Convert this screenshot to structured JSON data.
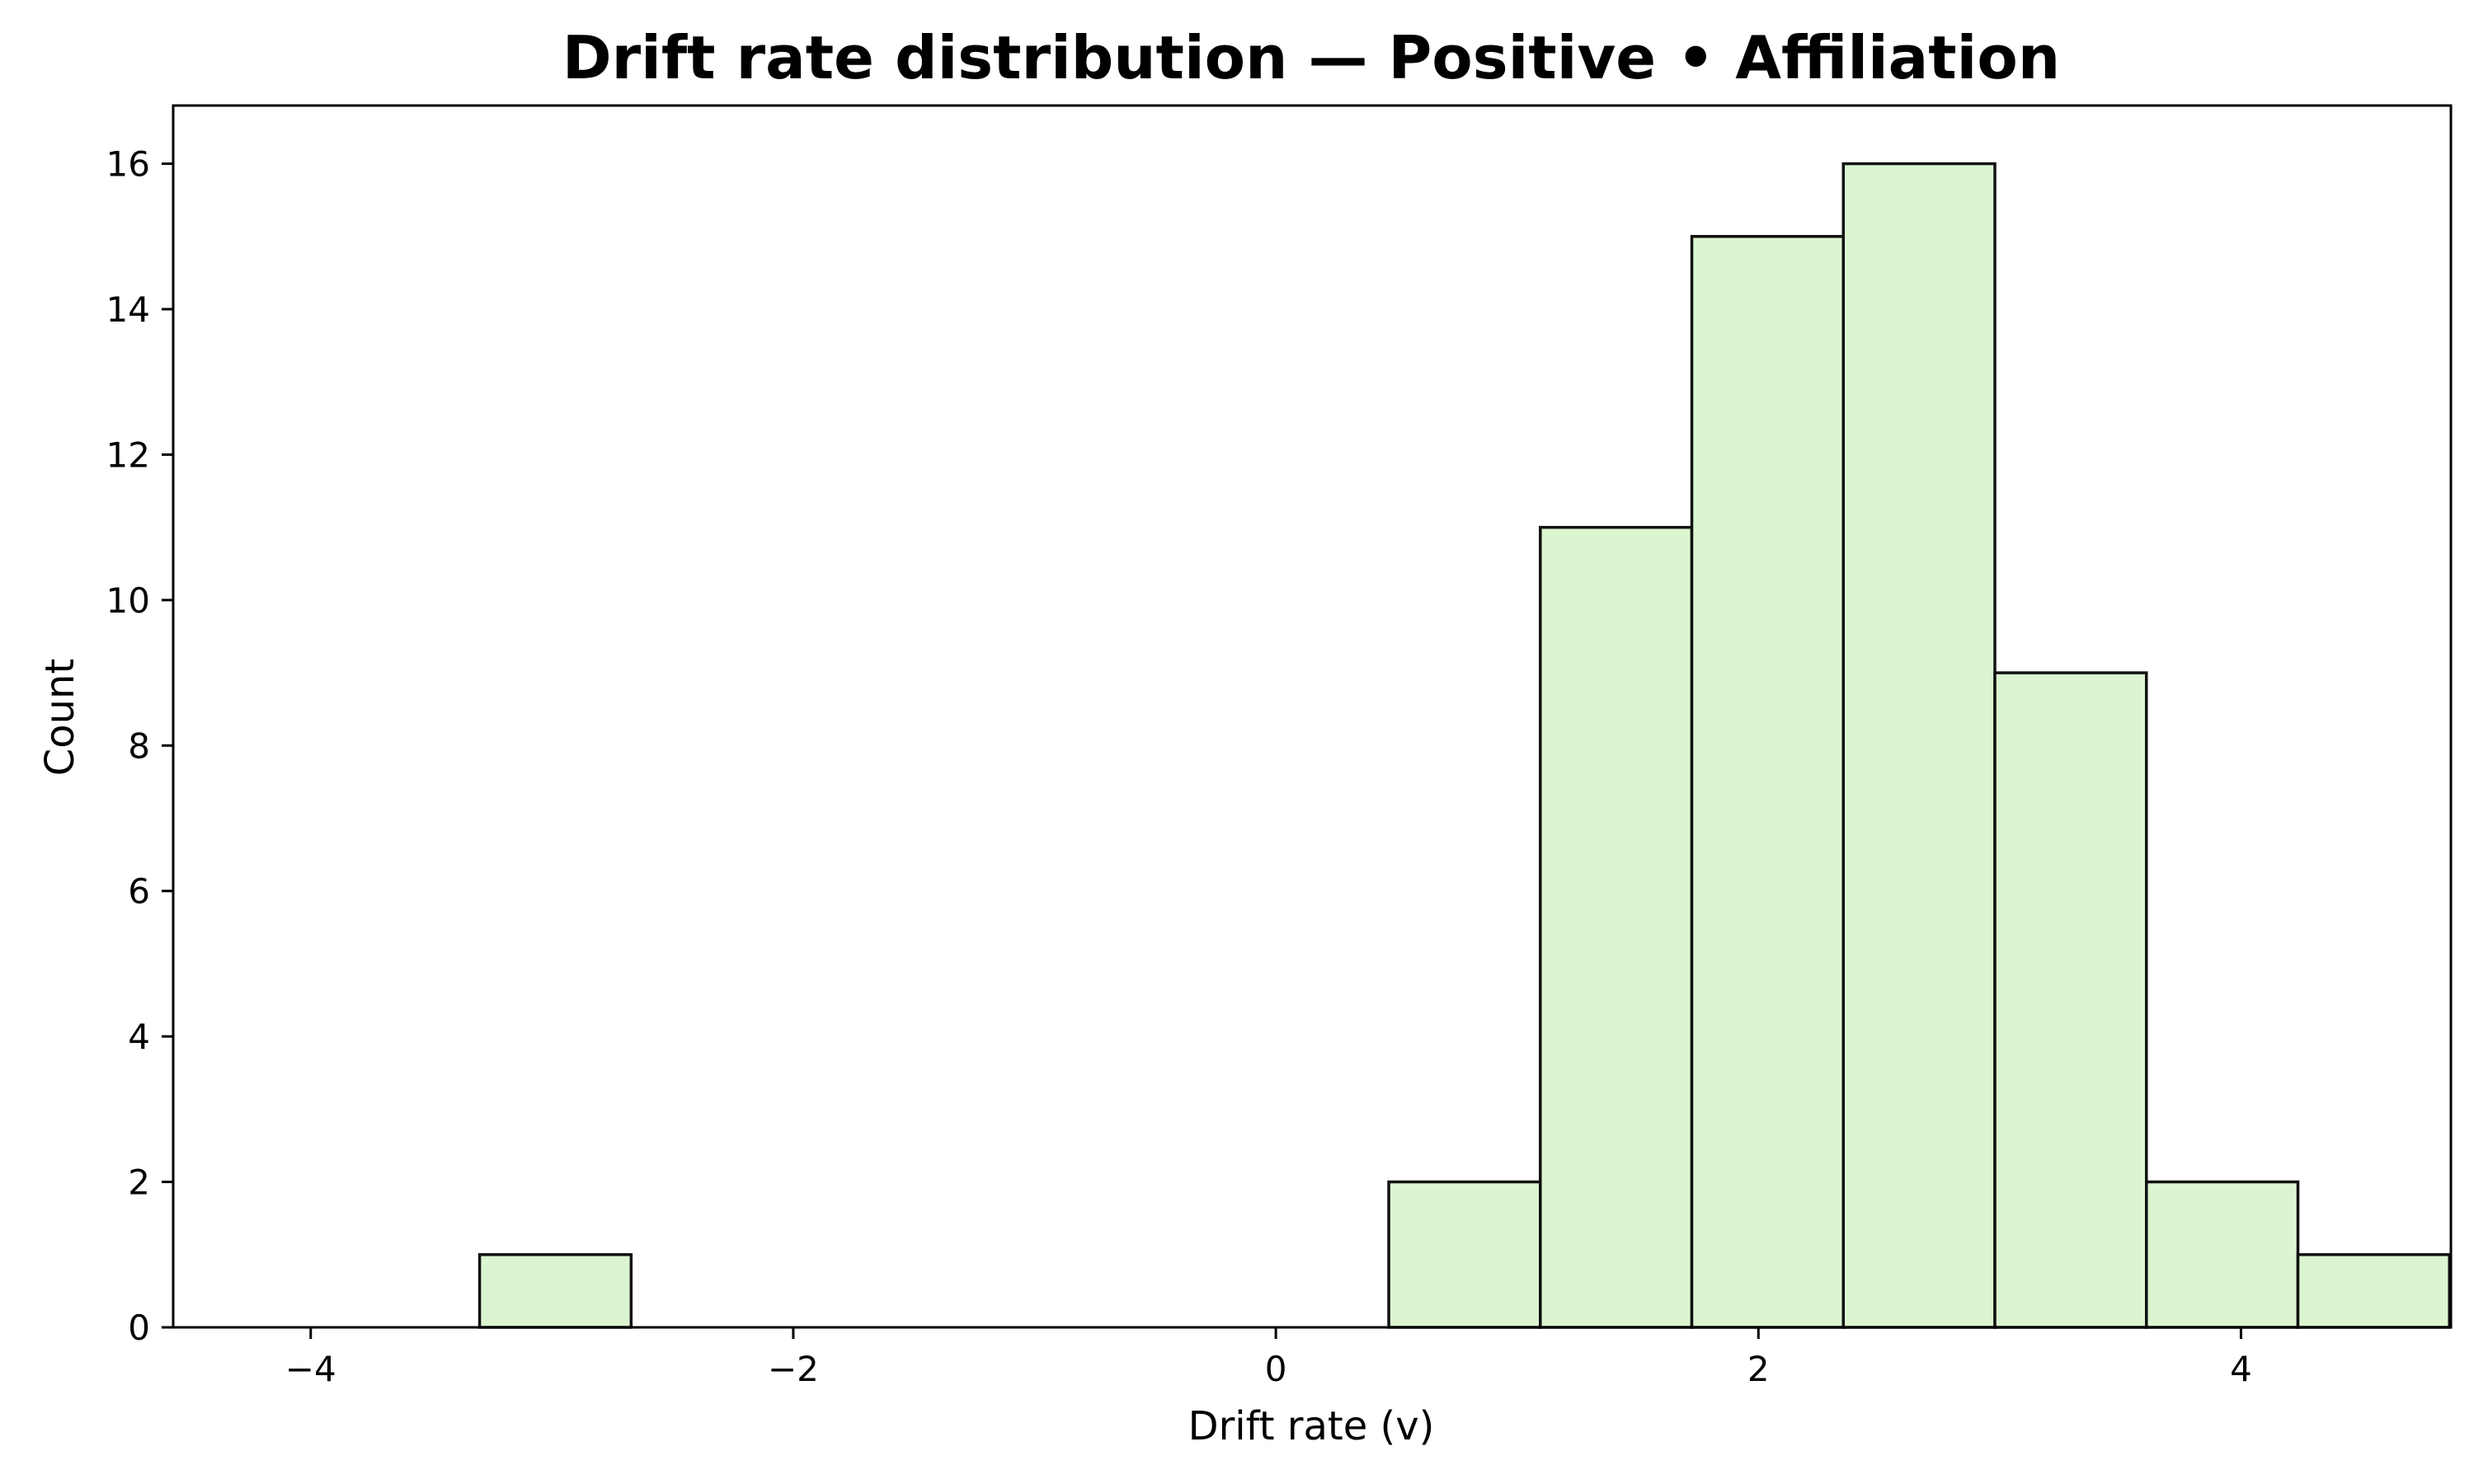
{
  "chart_data": {
    "type": "bar",
    "title": "Drift rate distribution — Positive • Affiliation",
    "xlabel": "Drift rate (v)",
    "ylabel": "Count",
    "xlim": [
      -4.57,
      4.87
    ],
    "ylim": [
      0,
      16.8
    ],
    "xticks": [
      -4,
      -2,
      0,
      2,
      4
    ],
    "yticks": [
      0,
      2,
      4,
      6,
      8,
      10,
      12,
      14,
      16
    ],
    "bin_width": 0.628,
    "bins": [
      {
        "x0": -3.3,
        "x1": -2.672,
        "count": 1
      },
      {
        "x0": -2.672,
        "x1": -2.044,
        "count": 0
      },
      {
        "x0": -2.044,
        "x1": -1.416,
        "count": 0
      },
      {
        "x0": -1.416,
        "x1": -0.788,
        "count": 0
      },
      {
        "x0": -0.788,
        "x1": -0.16,
        "count": 0
      },
      {
        "x0": -0.16,
        "x1": 0.468,
        "count": 0
      },
      {
        "x0": 0.468,
        "x1": 1.096,
        "count": 2
      },
      {
        "x0": 1.096,
        "x1": 1.724,
        "count": 11
      },
      {
        "x0": 1.724,
        "x1": 2.352,
        "count": 15
      },
      {
        "x0": 2.352,
        "x1": 2.98,
        "count": 16
      },
      {
        "x0": 2.98,
        "x1": 3.608,
        "count": 9
      },
      {
        "x0": 3.608,
        "x1": 4.236,
        "count": 2
      },
      {
        "x0": 4.236,
        "x1": 4.864,
        "count": 1
      }
    ],
    "grid": false,
    "legend": "none",
    "colors": {
      "bar_fill": "#dbf5d0",
      "bar_edge": "#111111",
      "axis": "#000000"
    }
  }
}
